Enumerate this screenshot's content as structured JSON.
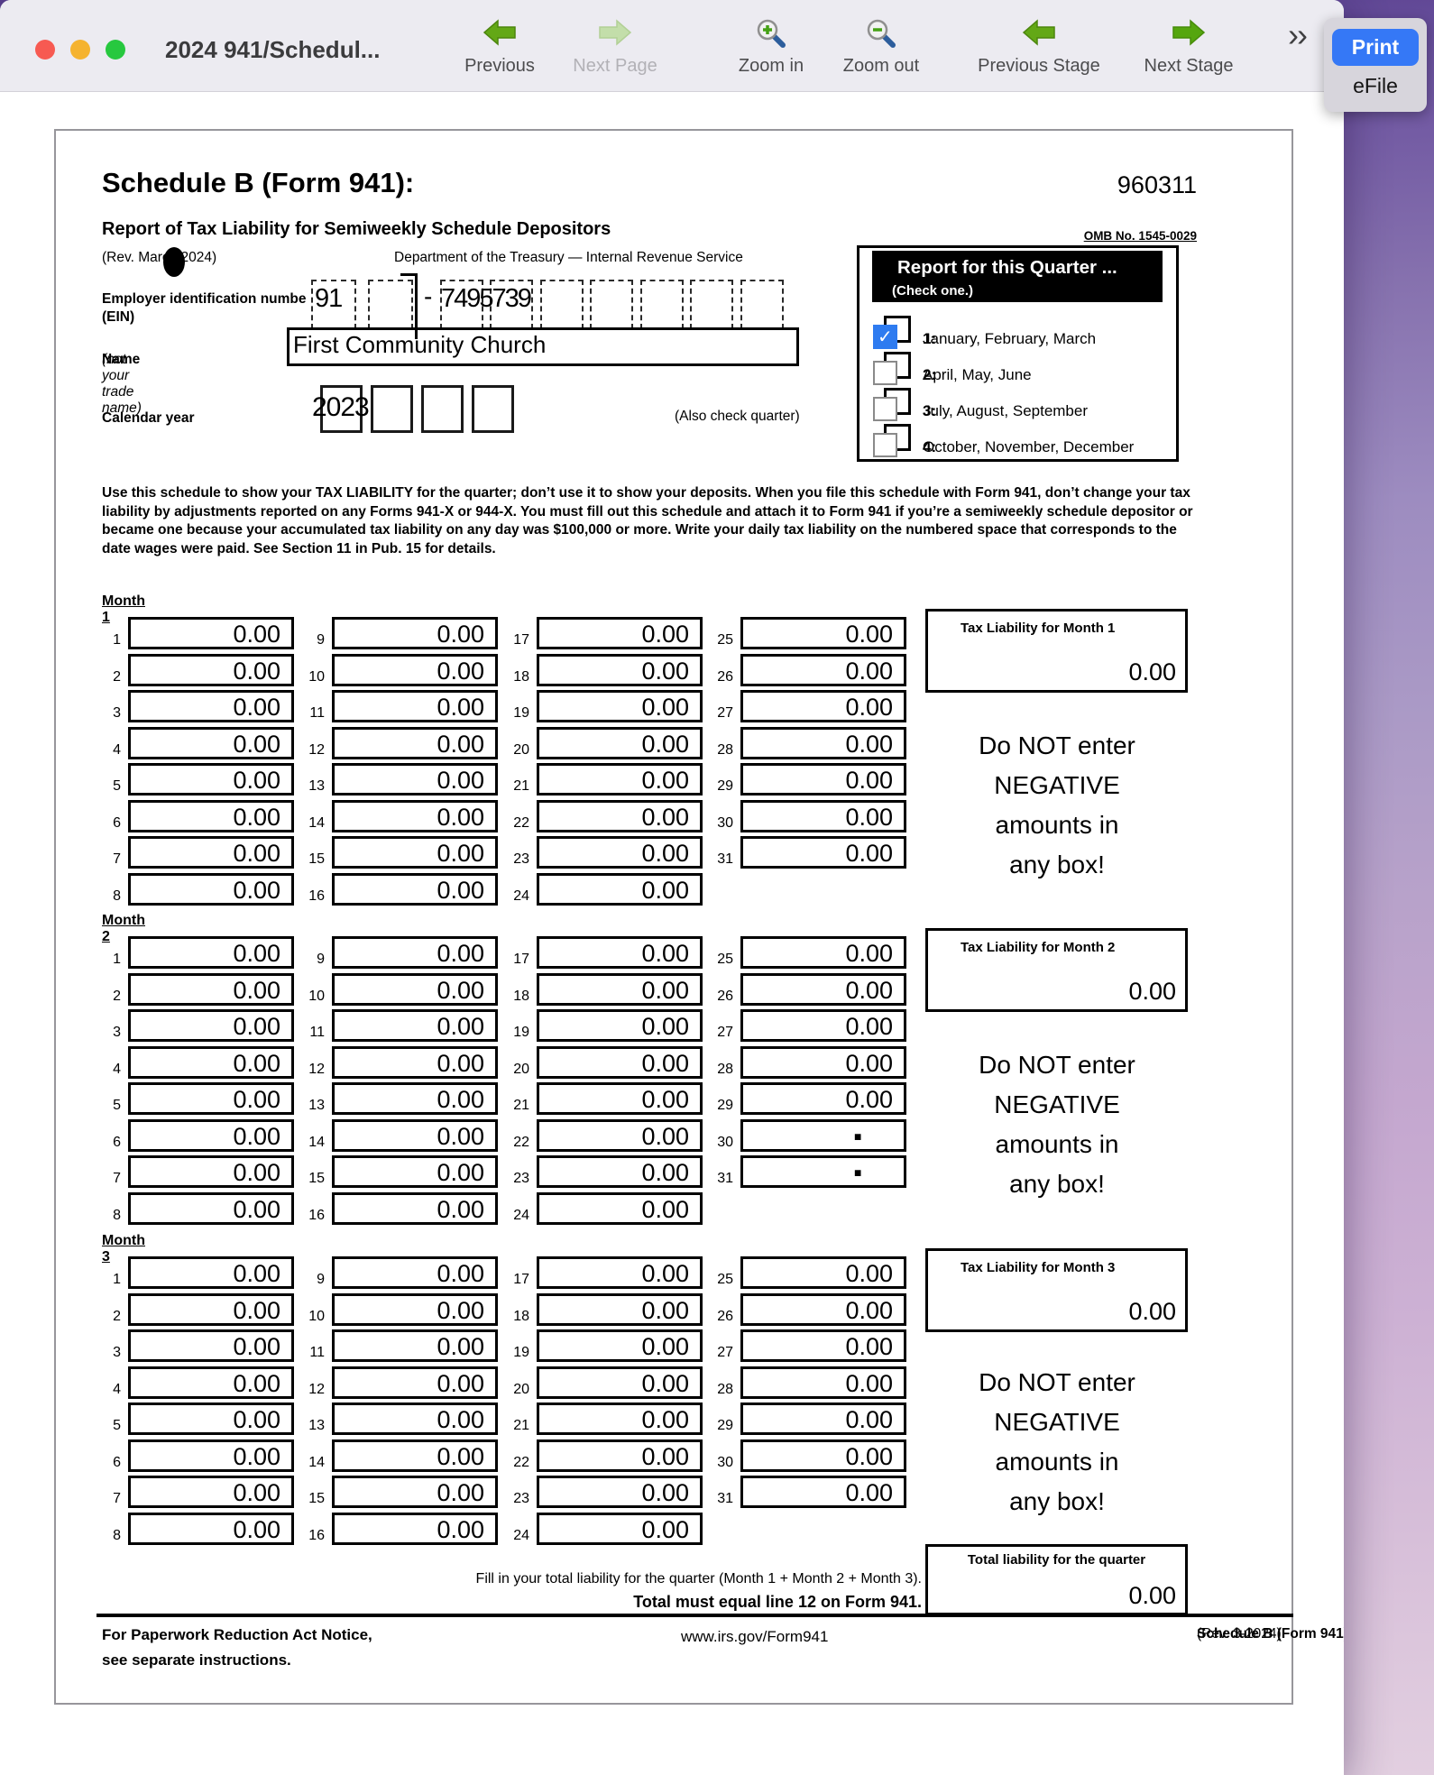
{
  "window_title": "2024 941/Schedul...",
  "toolbar": {
    "items": [
      {
        "label": "Previous"
      },
      {
        "label": "Next Page"
      },
      {
        "label": "Zoom in"
      },
      {
        "label": "Zoom out"
      },
      {
        "label": "Previous Stage"
      },
      {
        "label": "Next Stage"
      }
    ],
    "overflow_glyph": "››",
    "print_label": "Print",
    "efile_label": "eFile",
    "accent_blue": "#3578f6",
    "arrow_green": "#63a816"
  },
  "form": {
    "title": "Schedule B (Form 941):",
    "page_number": "960311",
    "subtitle": "Report of Tax Liability for Semiweekly Schedule Depositors",
    "revision": "(Rev. March 2024)",
    "department_line": "Department of the Treasury — Internal Revenue Service",
    "omb": "OMB No. 1545-0029",
    "ein": {
      "label": "Employer identification numbe",
      "label2": "(EIN)",
      "first": "91",
      "dash": "-",
      "second": "7495739"
    },
    "name": {
      "label_bold": "Name",
      "label_italic": "(not your trade name)",
      "value": "First Community Church"
    },
    "calendar": {
      "label": "Calendar year",
      "value": "2023",
      "note": "(Also check quarter)"
    },
    "quarter": {
      "title": "Report for this Quarter ...",
      "subtitle": "(Check one.)",
      "check_color": "#2e7bf0",
      "options": [
        {
          "num": "1:",
          "text": "January, February, March",
          "checked": true
        },
        {
          "num": "2:",
          "text": "April, May, June",
          "checked": false
        },
        {
          "num": "3:",
          "text": "July, August, September",
          "checked": false
        },
        {
          "num": "4:",
          "text": "October, November, December",
          "checked": false
        }
      ]
    },
    "instructions": "Use this schedule to show your TAX LIABILITY for the quarter; don’t use it to show your deposits. When you file this schedule with Form 941, don’t change your tax liability by adjustments reported on any Forms 941-X or 944-X. You must fill out this schedule and attach it to Form 941 if you’re a semiweekly schedule depositor or became one because your accumulated tax liability on any day was $100,000 or more. Write your daily tax liability on the numbered space that corresponds to the date wages were paid. See Section 11 in Pub. 15 for details.",
    "warning": "Do NOT enter\nNEGATIVE\namounts in\nany box!",
    "months": [
      {
        "label": "Month 1",
        "total_label": "Tax Liability for Month 1",
        "total_value": "0.00",
        "day_values": [
          "0.00",
          "0.00",
          "0.00",
          "0.00",
          "0.00",
          "0.00",
          "0.00",
          "0.00",
          "0.00",
          "0.00",
          "0.00",
          "0.00",
          "0.00",
          "0.00",
          "0.00",
          "0.00",
          "0.00",
          "0.00",
          "0.00",
          "0.00",
          "0.00",
          "0.00",
          "0.00",
          "0.00",
          "0.00",
          "0.00",
          "0.00",
          "0.00",
          "0.00",
          "0.00",
          "0.00"
        ]
      },
      {
        "label": "Month 2",
        "total_label": "Tax Liability for Month 2",
        "total_value": "0.00",
        "day_values": [
          "0.00",
          "0.00",
          "0.00",
          "0.00",
          "0.00",
          "0.00",
          "0.00",
          "0.00",
          "0.00",
          "0.00",
          "0.00",
          "0.00",
          "0.00",
          "0.00",
          "0.00",
          "0.00",
          "0.00",
          "0.00",
          "0.00",
          "0.00",
          "0.00",
          "0.00",
          "0.00",
          "0.00",
          "0.00",
          "0.00",
          "0.00",
          "0.00",
          "0.00",
          "▪",
          "▪"
        ]
      },
      {
        "label": "Month 3",
        "total_label": "Tax Liability for Month 3",
        "total_value": "0.00",
        "day_values": [
          "0.00",
          "0.00",
          "0.00",
          "0.00",
          "0.00",
          "0.00",
          "0.00",
          "0.00",
          "0.00",
          "0.00",
          "0.00",
          "0.00",
          "0.00",
          "0.00",
          "0.00",
          "0.00",
          "0.00",
          "0.00",
          "0.00",
          "0.00",
          "0.00",
          "0.00",
          "0.00",
          "0.00",
          "0.00",
          "0.00",
          "0.00",
          "0.00",
          "0.00",
          "0.00",
          "0.00"
        ]
      }
    ],
    "total": {
      "label": "Total liability for the quarter",
      "value": "0.00"
    },
    "footer": {
      "fill_line": "Fill in your total liability for the quarter (Month 1 + Month 2 + Month 3).",
      "total_line": "Total must equal line 12 on Form 941.",
      "notice1": "For Paperwork Reduction Act Notice,",
      "notice2": "see separate instructions.",
      "url": "www.irs.gov/Form941",
      "form_id": "Schedule B (Form 941)",
      "rev": "(Rev. 3-2024)"
    }
  }
}
